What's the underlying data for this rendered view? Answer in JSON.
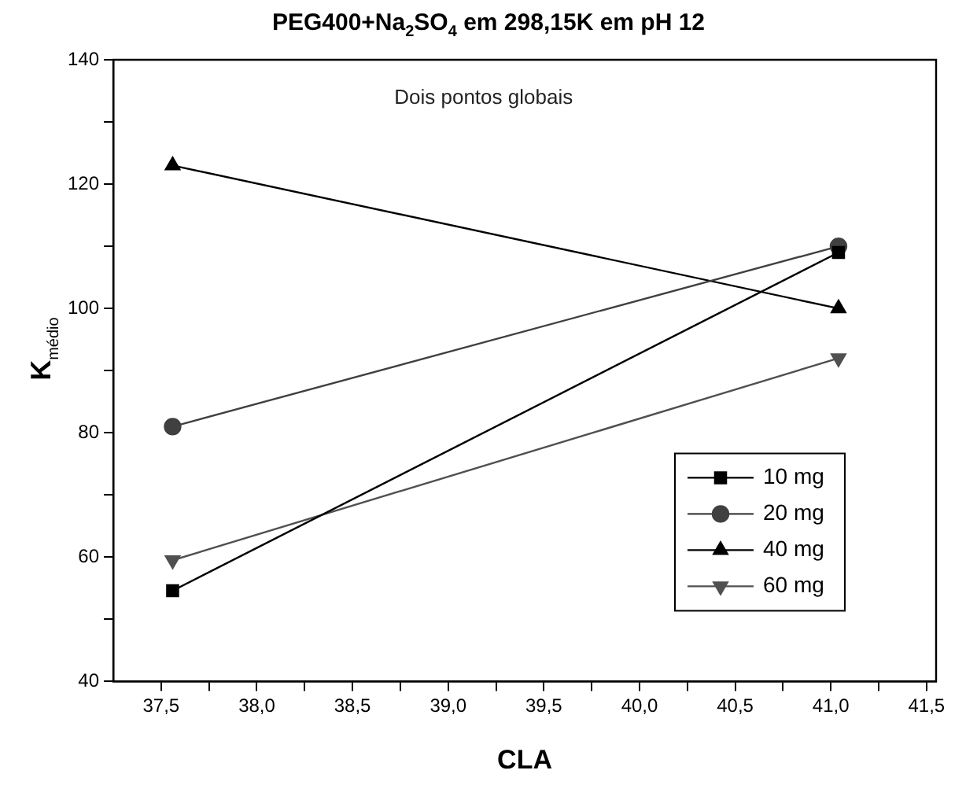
{
  "chart_data": {
    "type": "line",
    "title": "PEG400+Na$_{2}$SO$_{4}$ em 298,15K em pH 12",
    "xlabel": "CLA",
    "ylabel": "K$_{médio}$",
    "annotations": [
      "Dois pontos globais"
    ],
    "x": [
      37.56,
      41.04
    ],
    "series": [
      {
        "name": "10 mg",
        "color": "#000000",
        "marker": "square",
        "values": [
          54.6,
          109
        ]
      },
      {
        "name": "20 mg",
        "color": "#404040",
        "marker": "circle",
        "values": [
          81,
          110
        ]
      },
      {
        "name": "40 mg",
        "color": "#000000",
        "marker": "triangle",
        "values": [
          123,
          100
        ]
      },
      {
        "name": "60 mg",
        "color": "#505050",
        "marker": "triangle-down",
        "values": [
          59.5,
          92
        ]
      }
    ],
    "xlim": [
      37.25,
      41.55
    ],
    "xticks": [
      {
        "value": 37.5,
        "label": "37,5"
      },
      {
        "value": 37.75,
        "label": null
      },
      {
        "value": 38,
        "label": "38,0"
      },
      {
        "value": 38.25,
        "label": null
      },
      {
        "value": 38.5,
        "label": "38,5"
      },
      {
        "value": 38.75,
        "label": null
      },
      {
        "value": 39,
        "label": "39,0"
      },
      {
        "value": 39.25,
        "label": null
      },
      {
        "value": 39.5,
        "label": "39,5"
      },
      {
        "value": 39.75,
        "label": null
      },
      {
        "value": 40,
        "label": "40,0"
      },
      {
        "value": 40.25,
        "label": null
      },
      {
        "value": 40.5,
        "label": "40,5"
      },
      {
        "value": 40.75,
        "label": null
      },
      {
        "value": 41,
        "label": "41,0"
      },
      {
        "value": 41.25,
        "label": null
      },
      {
        "value": 41.5,
        "label": "41,5"
      }
    ],
    "ylim": [
      40,
      140
    ],
    "yticks": [
      40,
      {
        "value": 50,
        "label": null
      },
      60,
      {
        "value": 70,
        "label": null
      },
      80,
      {
        "value": 90,
        "label": null
      },
      100,
      {
        "value": 110,
        "label": null
      },
      120,
      {
        "value": 130,
        "label": null
      },
      140
    ],
    "grid": false,
    "legend": "bottom right",
    "line_style": "solid"
  }
}
